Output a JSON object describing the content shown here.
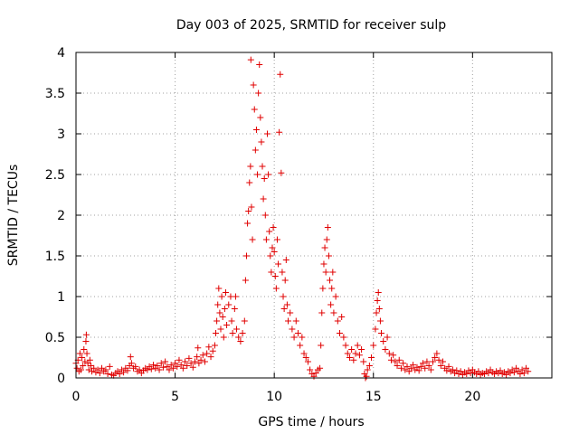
{
  "chart_data": {
    "type": "scatter",
    "title": "Day 003 of 2025, SRMTID for receiver sulp",
    "xlabel": "GPS time / hours",
    "ylabel": "SRMTID / TECUs",
    "xlim": [
      0,
      24
    ],
    "ylim": [
      0,
      4
    ],
    "xticks": [
      0,
      5,
      10,
      15,
      20
    ],
    "xtick_labels": [
      "0",
      "5",
      "10",
      "15",
      "20"
    ],
    "yticks": [
      0,
      0.5,
      1,
      1.5,
      2,
      2.5,
      3,
      3.5,
      4
    ],
    "ytick_labels": [
      "0",
      "0.5",
      "1",
      "1.5",
      "2",
      "2.5",
      "3",
      "3.5",
      "4"
    ],
    "grid": true,
    "marker": "+",
    "color": "#e00000",
    "series": [
      {
        "name": "SRMTID",
        "points": [
          [
            0.0,
            0.18
          ],
          [
            0.05,
            0.12
          ],
          [
            0.1,
            0.22
          ],
          [
            0.15,
            0.08
          ],
          [
            0.2,
            0.3
          ],
          [
            0.25,
            0.1
          ],
          [
            0.3,
            0.25
          ],
          [
            0.35,
            0.15
          ],
          [
            0.4,
            0.35
          ],
          [
            0.45,
            0.2
          ],
          [
            0.5,
            0.45
          ],
          [
            0.52,
            0.53
          ],
          [
            0.55,
            0.3
          ],
          [
            0.6,
            0.18
          ],
          [
            0.65,
            0.1
          ],
          [
            0.7,
            0.22
          ],
          [
            0.75,
            0.15
          ],
          [
            0.8,
            0.08
          ],
          [
            0.9,
            0.12
          ],
          [
            1.0,
            0.07
          ],
          [
            1.1,
            0.1
          ],
          [
            1.2,
            0.06
          ],
          [
            1.3,
            0.12
          ],
          [
            1.4,
            0.08
          ],
          [
            1.5,
            0.1
          ],
          [
            1.6,
            0.05
          ],
          [
            1.7,
            0.14
          ],
          [
            1.8,
            0.04
          ],
          [
            1.9,
            0.03
          ],
          [
            2.0,
            0.06
          ],
          [
            2.1,
            0.08
          ],
          [
            2.2,
            0.05
          ],
          [
            2.3,
            0.1
          ],
          [
            2.4,
            0.07
          ],
          [
            2.5,
            0.12
          ],
          [
            2.6,
            0.09
          ],
          [
            2.7,
            0.15
          ],
          [
            2.75,
            0.26
          ],
          [
            2.8,
            0.18
          ],
          [
            2.9,
            0.12
          ],
          [
            3.0,
            0.14
          ],
          [
            3.1,
            0.08
          ],
          [
            3.2,
            0.1
          ],
          [
            3.3,
            0.06
          ],
          [
            3.4,
            0.09
          ],
          [
            3.5,
            0.12
          ],
          [
            3.6,
            0.1
          ],
          [
            3.7,
            0.14
          ],
          [
            3.8,
            0.11
          ],
          [
            3.9,
            0.16
          ],
          [
            4.0,
            0.12
          ],
          [
            4.1,
            0.15
          ],
          [
            4.2,
            0.1
          ],
          [
            4.3,
            0.18
          ],
          [
            4.4,
            0.13
          ],
          [
            4.5,
            0.2
          ],
          [
            4.6,
            0.14
          ],
          [
            4.7,
            0.1
          ],
          [
            4.8,
            0.16
          ],
          [
            4.9,
            0.12
          ],
          [
            5.0,
            0.18
          ],
          [
            5.1,
            0.14
          ],
          [
            5.2,
            0.22
          ],
          [
            5.3,
            0.16
          ],
          [
            5.4,
            0.12
          ],
          [
            5.5,
            0.2
          ],
          [
            5.6,
            0.15
          ],
          [
            5.7,
            0.24
          ],
          [
            5.8,
            0.18
          ],
          [
            5.9,
            0.13
          ],
          [
            6.0,
            0.2
          ],
          [
            6.1,
            0.26
          ],
          [
            6.15,
            0.37
          ],
          [
            6.2,
            0.18
          ],
          [
            6.3,
            0.22
          ],
          [
            6.4,
            0.28
          ],
          [
            6.5,
            0.2
          ],
          [
            6.6,
            0.3
          ],
          [
            6.7,
            0.38
          ],
          [
            6.8,
            0.26
          ],
          [
            6.9,
            0.33
          ],
          [
            7.0,
            0.4
          ],
          [
            7.05,
            0.55
          ],
          [
            7.1,
            0.7
          ],
          [
            7.15,
            0.9
          ],
          [
            7.2,
            1.1
          ],
          [
            7.25,
            0.8
          ],
          [
            7.3,
            0.6
          ],
          [
            7.35,
            1.0
          ],
          [
            7.4,
            0.75
          ],
          [
            7.45,
            0.5
          ],
          [
            7.5,
            0.85
          ],
          [
            7.55,
            1.05
          ],
          [
            7.6,
            0.65
          ],
          [
            7.7,
            0.9
          ],
          [
            7.8,
            1.0
          ],
          [
            7.85,
            0.7
          ],
          [
            7.9,
            0.55
          ],
          [
            8.0,
            0.85
          ],
          [
            8.05,
            1.0
          ],
          [
            8.1,
            0.6
          ],
          [
            8.2,
            0.5
          ],
          [
            8.3,
            0.45
          ],
          [
            8.4,
            0.55
          ],
          [
            8.5,
            0.7
          ],
          [
            8.55,
            1.2
          ],
          [
            8.6,
            1.5
          ],
          [
            8.65,
            1.9
          ],
          [
            8.7,
            2.05
          ],
          [
            8.75,
            2.4
          ],
          [
            8.8,
            2.6
          ],
          [
            8.82,
            3.91
          ],
          [
            8.85,
            2.1
          ],
          [
            8.9,
            1.7
          ],
          [
            8.95,
            3.6
          ],
          [
            9.0,
            3.3
          ],
          [
            9.05,
            2.8
          ],
          [
            9.1,
            3.05
          ],
          [
            9.15,
            2.5
          ],
          [
            9.2,
            3.5
          ],
          [
            9.25,
            3.85
          ],
          [
            9.3,
            3.2
          ],
          [
            9.35,
            2.9
          ],
          [
            9.4,
            2.6
          ],
          [
            9.45,
            2.2
          ],
          [
            9.5,
            2.45
          ],
          [
            9.55,
            2.0
          ],
          [
            9.6,
            1.7
          ],
          [
            9.65,
            3.0
          ],
          [
            9.7,
            2.5
          ],
          [
            9.75,
            1.8
          ],
          [
            9.8,
            1.5
          ],
          [
            9.85,
            1.3
          ],
          [
            9.9,
            1.6
          ],
          [
            9.95,
            1.85
          ],
          [
            10.0,
            1.55
          ],
          [
            10.05,
            1.25
          ],
          [
            10.1,
            1.1
          ],
          [
            10.15,
            1.7
          ],
          [
            10.2,
            1.4
          ],
          [
            10.25,
            3.02
          ],
          [
            10.3,
            3.73
          ],
          [
            10.35,
            2.52
          ],
          [
            10.4,
            1.3
          ],
          [
            10.45,
            1.0
          ],
          [
            10.5,
            0.85
          ],
          [
            10.55,
            1.2
          ],
          [
            10.6,
            1.45
          ],
          [
            10.65,
            0.9
          ],
          [
            10.7,
            0.7
          ],
          [
            10.8,
            0.8
          ],
          [
            10.9,
            0.6
          ],
          [
            11.0,
            0.5
          ],
          [
            11.1,
            0.7
          ],
          [
            11.2,
            0.55
          ],
          [
            11.3,
            0.4
          ],
          [
            11.4,
            0.5
          ],
          [
            11.5,
            0.3
          ],
          [
            11.6,
            0.25
          ],
          [
            11.7,
            0.2
          ],
          [
            11.8,
            0.1
          ],
          [
            11.9,
            0.05
          ],
          [
            12.0,
            0.02
          ],
          [
            12.1,
            0.06
          ],
          [
            12.2,
            0.1
          ],
          [
            12.3,
            0.12
          ],
          [
            12.35,
            0.4
          ],
          [
            12.4,
            0.8
          ],
          [
            12.45,
            1.1
          ],
          [
            12.5,
            1.4
          ],
          [
            12.55,
            1.6
          ],
          [
            12.6,
            1.3
          ],
          [
            12.65,
            1.7
          ],
          [
            12.7,
            1.85
          ],
          [
            12.75,
            1.5
          ],
          [
            12.8,
            1.2
          ],
          [
            12.85,
            0.9
          ],
          [
            12.9,
            1.1
          ],
          [
            12.95,
            1.3
          ],
          [
            13.0,
            0.8
          ],
          [
            13.1,
            1.0
          ],
          [
            13.2,
            0.7
          ],
          [
            13.3,
            0.55
          ],
          [
            13.4,
            0.75
          ],
          [
            13.5,
            0.5
          ],
          [
            13.6,
            0.4
          ],
          [
            13.7,
            0.3
          ],
          [
            13.8,
            0.25
          ],
          [
            13.9,
            0.35
          ],
          [
            14.0,
            0.22
          ],
          [
            14.1,
            0.3
          ],
          [
            14.2,
            0.4
          ],
          [
            14.3,
            0.28
          ],
          [
            14.4,
            0.35
          ],
          [
            14.5,
            0.2
          ],
          [
            14.55,
            0.05
          ],
          [
            14.6,
            0.0
          ],
          [
            14.65,
            0.02
          ],
          [
            14.7,
            0.1
          ],
          [
            14.8,
            0.15
          ],
          [
            14.9,
            0.25
          ],
          [
            15.0,
            0.4
          ],
          [
            15.1,
            0.6
          ],
          [
            15.15,
            0.8
          ],
          [
            15.2,
            0.95
          ],
          [
            15.25,
            1.05
          ],
          [
            15.3,
            0.85
          ],
          [
            15.35,
            0.7
          ],
          [
            15.4,
            0.55
          ],
          [
            15.5,
            0.45
          ],
          [
            15.6,
            0.35
          ],
          [
            15.7,
            0.5
          ],
          [
            15.8,
            0.3
          ],
          [
            15.9,
            0.22
          ],
          [
            16.0,
            0.28
          ],
          [
            16.1,
            0.2
          ],
          [
            16.2,
            0.15
          ],
          [
            16.3,
            0.22
          ],
          [
            16.4,
            0.12
          ],
          [
            16.5,
            0.18
          ],
          [
            16.6,
            0.1
          ],
          [
            16.7,
            0.14
          ],
          [
            16.8,
            0.08
          ],
          [
            16.9,
            0.12
          ],
          [
            17.0,
            0.16
          ],
          [
            17.1,
            0.1
          ],
          [
            17.2,
            0.13
          ],
          [
            17.3,
            0.09
          ],
          [
            17.4,
            0.14
          ],
          [
            17.5,
            0.18
          ],
          [
            17.6,
            0.12
          ],
          [
            17.7,
            0.2
          ],
          [
            17.8,
            0.15
          ],
          [
            17.9,
            0.1
          ],
          [
            18.0,
            0.2
          ],
          [
            18.1,
            0.25
          ],
          [
            18.2,
            0.3
          ],
          [
            18.3,
            0.22
          ],
          [
            18.4,
            0.15
          ],
          [
            18.5,
            0.2
          ],
          [
            18.6,
            0.12
          ],
          [
            18.7,
            0.09
          ],
          [
            18.8,
            0.14
          ],
          [
            18.9,
            0.08
          ],
          [
            19.0,
            0.1
          ],
          [
            19.1,
            0.06
          ],
          [
            19.2,
            0.09
          ],
          [
            19.3,
            0.05
          ],
          [
            19.4,
            0.08
          ],
          [
            19.5,
            0.04
          ],
          [
            19.6,
            0.07
          ],
          [
            19.7,
            0.05
          ],
          [
            19.8,
            0.09
          ],
          [
            19.9,
            0.06
          ],
          [
            20.0,
            0.1
          ],
          [
            20.1,
            0.07
          ],
          [
            20.2,
            0.05
          ],
          [
            20.3,
            0.08
          ],
          [
            20.4,
            0.04
          ],
          [
            20.5,
            0.06
          ],
          [
            20.6,
            0.05
          ],
          [
            20.7,
            0.08
          ],
          [
            20.8,
            0.06
          ],
          [
            20.9,
            0.1
          ],
          [
            21.0,
            0.07
          ],
          [
            21.1,
            0.05
          ],
          [
            21.2,
            0.08
          ],
          [
            21.3,
            0.06
          ],
          [
            21.4,
            0.09
          ],
          [
            21.5,
            0.05
          ],
          [
            21.6,
            0.07
          ],
          [
            21.7,
            0.04
          ],
          [
            21.8,
            0.08
          ],
          [
            21.9,
            0.06
          ],
          [
            22.0,
            0.1
          ],
          [
            22.1,
            0.07
          ],
          [
            22.2,
            0.12
          ],
          [
            22.3,
            0.08
          ],
          [
            22.4,
            0.05
          ],
          [
            22.5,
            0.1
          ],
          [
            22.6,
            0.06
          ],
          [
            22.7,
            0.12
          ],
          [
            22.8,
            0.08
          ]
        ]
      }
    ]
  }
}
